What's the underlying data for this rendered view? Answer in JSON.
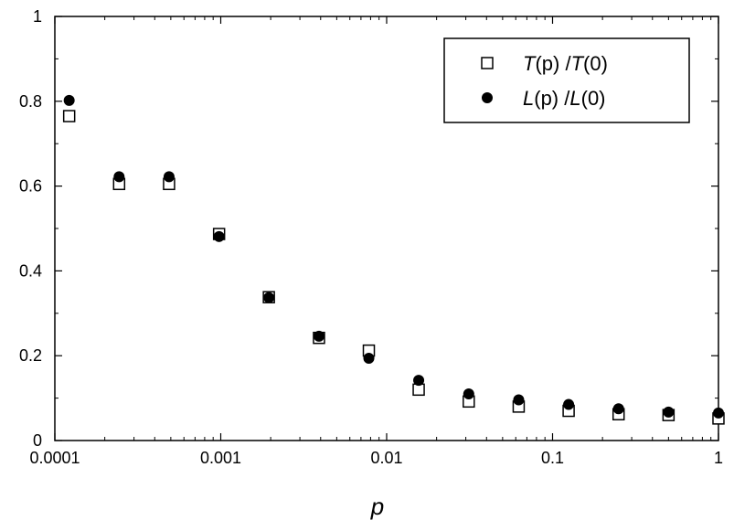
{
  "chart_data": {
    "type": "scatter",
    "title": "",
    "xlabel": "p",
    "ylabel": "",
    "xscale": "log",
    "xlim": [
      0.0001,
      1
    ],
    "ylim": [
      0,
      1
    ],
    "grid": false,
    "legend_position": "top-right",
    "x_ticks": [
      {
        "value": 0.0001,
        "label": "0.0001"
      },
      {
        "value": 0.001,
        "label": "0.001"
      },
      {
        "value": 0.01,
        "label": "0.01"
      },
      {
        "value": 0.1,
        "label": "0.1"
      },
      {
        "value": 1,
        "label": "1"
      }
    ],
    "y_ticks": [
      {
        "value": 0,
        "label": "0"
      },
      {
        "value": 0.2,
        "label": "0.2"
      },
      {
        "value": 0.4,
        "label": "0.4"
      },
      {
        "value": 0.6,
        "label": "0.6"
      },
      {
        "value": 0.8,
        "label": "0.8"
      },
      {
        "value": 1,
        "label": "1"
      }
    ],
    "series": [
      {
        "name": "T(p) /T(0)",
        "marker": "open-square",
        "color": "#000000",
        "x": [
          0.000122,
          0.000244,
          0.000488,
          0.000977,
          0.00195,
          0.00391,
          0.00781,
          0.0156,
          0.03125,
          0.0625,
          0.125,
          0.25,
          0.5,
          1
        ],
        "y": [
          0.765,
          0.605,
          0.605,
          0.487,
          0.338,
          0.242,
          0.212,
          0.12,
          0.092,
          0.08,
          0.07,
          0.062,
          0.06,
          0.052
        ]
      },
      {
        "name": "L(p) /L(0)",
        "marker": "filled-circle",
        "color": "#000000",
        "x": [
          0.000122,
          0.000244,
          0.000488,
          0.000977,
          0.00195,
          0.00391,
          0.00781,
          0.0156,
          0.03125,
          0.0625,
          0.125,
          0.25,
          0.5,
          1
        ],
        "y": [
          0.802,
          0.622,
          0.622,
          0.481,
          0.337,
          0.246,
          0.194,
          0.142,
          0.11,
          0.096,
          0.085,
          0.075,
          0.067,
          0.065
        ]
      }
    ]
  }
}
